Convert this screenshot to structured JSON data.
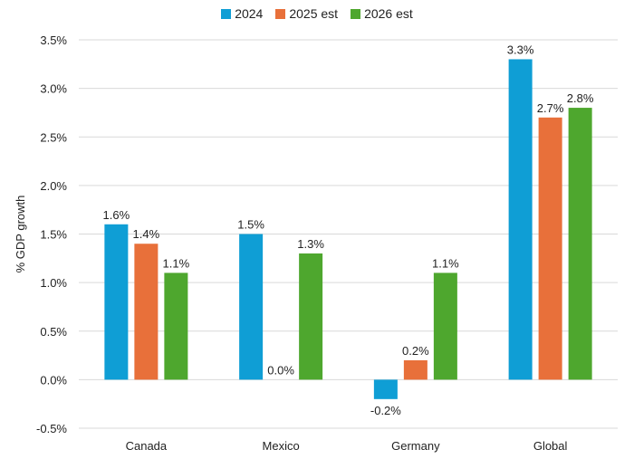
{
  "chart_data": {
    "type": "bar",
    "ylabel": "% GDP growth",
    "categories": [
      "Canada",
      "Mexico",
      "Germany",
      "Global"
    ],
    "series": [
      {
        "name": "2024",
        "color": "#0f9ed5",
        "values": [
          1.6,
          1.5,
          -0.2,
          3.3
        ],
        "labels": [
          "1.6%",
          "1.5%",
          "-0.2%",
          "3.3%"
        ]
      },
      {
        "name": "2025 est",
        "color": "#e8703a",
        "values": [
          1.4,
          0.0,
          0.2,
          2.7
        ],
        "labels": [
          "1.4%",
          "0.0%",
          "0.2%",
          "2.7%"
        ]
      },
      {
        "name": "2026 est",
        "color": "#4ea72e",
        "values": [
          1.1,
          1.3,
          1.1,
          2.8
        ],
        "labels": [
          "1.1%",
          "1.3%",
          "1.1%",
          "2.8%"
        ]
      }
    ],
    "ylim": [
      -0.5,
      3.5
    ],
    "yticks": [
      3.5,
      3.0,
      2.5,
      2.0,
      1.5,
      1.0,
      0.5,
      0.0,
      -0.5
    ],
    "ytick_labels": [
      "3.5%",
      "3.0%",
      "2.5%",
      "2.0%",
      "1.5%",
      "1.0%",
      "0.5%",
      "0.0%",
      "-0.5%"
    ],
    "grid": true,
    "legend_position": "top-center"
  }
}
